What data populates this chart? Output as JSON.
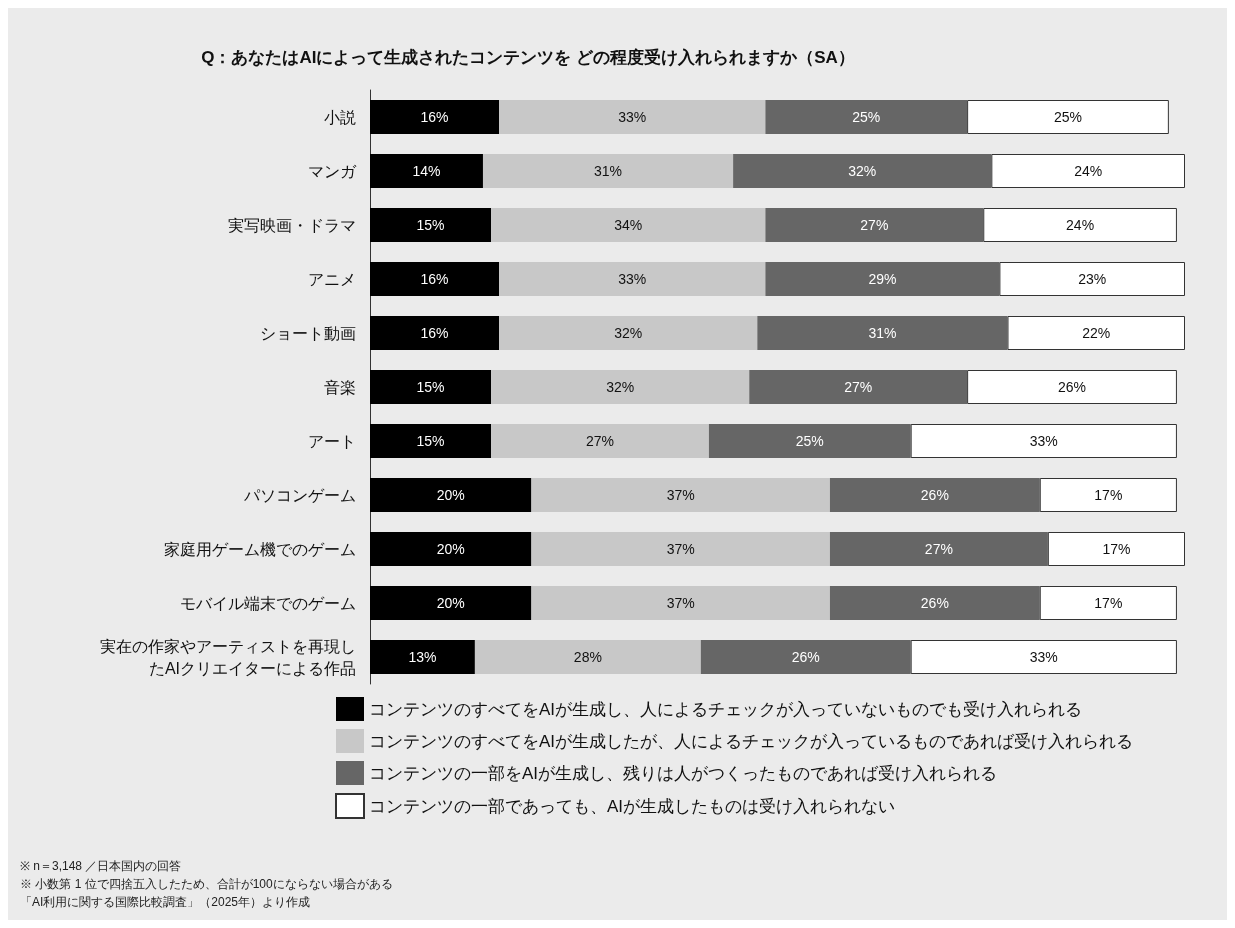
{
  "chart_data": {
    "type": "bar",
    "orientation": "horizontal",
    "stacked": true,
    "title": "Q：あなたはAIによって生成されたコンテンツを どの程度受け入れられますか（SA）",
    "categories": [
      "小説",
      "マンガ",
      "実写映画・ドラマ",
      "アニメ",
      "ショート動画",
      "音楽",
      "アート",
      "パソコンゲーム",
      "家庭用ゲーム機でのゲーム",
      "モバイル端末でのゲーム",
      "実在の作家やアーティストを再現したAIクリエイターによる作品"
    ],
    "series": [
      {
        "name": "コンテンツのすべてをAIが生成し、人によるチェックが入っていないものでも受け入れられる",
        "color": "#000000",
        "values": [
          16,
          14,
          15,
          16,
          16,
          15,
          15,
          20,
          20,
          20,
          13
        ],
        "value_labels": [
          "16%",
          "14%",
          "15%",
          "16%",
          "16%",
          "15%",
          "15%",
          "20%",
          "20%",
          "20%",
          "13%"
        ]
      },
      {
        "name": "コンテンツのすべてをAIが生成したが、人によるチェックが入っているものであれば受け入れられる",
        "color": "#c8c8c8",
        "values": [
          33,
          31,
          34,
          33,
          32,
          32,
          27,
          37,
          37,
          37,
          28
        ],
        "value_labels": [
          "33%",
          "31%",
          "34%",
          "33%",
          "32%",
          "32%",
          "27%",
          "37%",
          "37%",
          "37%",
          "28%"
        ]
      },
      {
        "name": "コンテンツの一部をAIが生成し、残りは人がつくったものであれば受け入れられる",
        "color": "#666666",
        "values": [
          25,
          32,
          27,
          29,
          31,
          27,
          25,
          26,
          27,
          26,
          26
        ],
        "value_labels": [
          "25%",
          "32%",
          "27%",
          "29%",
          "31%",
          "27%",
          "25%",
          "26%",
          "27%",
          "26%",
          "26%"
        ]
      },
      {
        "name": "コンテンツの一部であっても、AIが生成したものは受け入れられない",
        "color": "#ffffff",
        "values": [
          25,
          24,
          24,
          23,
          22,
          26,
          33,
          17,
          17,
          17,
          33
        ],
        "value_labels": [
          "25%",
          "24%",
          "24%",
          "23%",
          "22%",
          "26%",
          "33%",
          "17%",
          "17%",
          "17%",
          "33%"
        ]
      }
    ],
    "tick_labels": "y",
    "legend": "bottom",
    "annotations": [
      "※ n＝3,148 ／日本国内の回答",
      "※ 小数第 1 位で四捨五入したため、合計が100にならない場合がある",
      "「AI利用に関する国際比較調査」（2025年）より作成"
    ]
  }
}
